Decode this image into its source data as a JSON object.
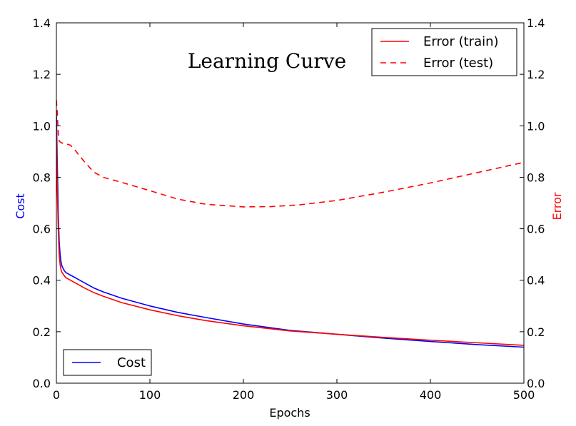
{
  "chart_data": {
    "type": "line",
    "title": "Learning Curve",
    "xlabel": "Epochs",
    "ylabel_left": "Cost",
    "ylabel_right": "Error",
    "xlim": [
      0,
      500
    ],
    "ylim_left": [
      0.0,
      1.4
    ],
    "ylim_right": [
      0.0,
      1.4
    ],
    "x_ticks": [
      "0",
      "100",
      "200",
      "300",
      "400",
      "500"
    ],
    "y_ticks_left": [
      "0.0",
      "0.2",
      "0.4",
      "0.6",
      "0.8",
      "1.0",
      "1.2",
      "1.4"
    ],
    "y_ticks_right": [
      "0.0",
      "0.2",
      "0.4",
      "0.6",
      "0.8",
      "1.0",
      "1.2",
      "1.4"
    ],
    "grid": false,
    "left_axis_color": "#0000ff",
    "right_axis_color": "#ff0000",
    "legend_right": {
      "placement": "top-right",
      "entries": [
        "Error (train)",
        "Error (test)"
      ]
    },
    "legend_left": {
      "placement": "bottom-left",
      "entries": [
        "Cost"
      ]
    },
    "series": [
      {
        "name": "Cost",
        "axis": "left",
        "color": "#0000ff",
        "style": "solid",
        "x": [
          0,
          1,
          2,
          3,
          4,
          5,
          6,
          8,
          10,
          15,
          20,
          30,
          40,
          50,
          70,
          100,
          130,
          160,
          200,
          250,
          300,
          350,
          400,
          450,
          500
        ],
        "y": [
          1.05,
          0.85,
          0.66,
          0.55,
          0.5,
          0.47,
          0.455,
          0.44,
          0.43,
          0.42,
          0.41,
          0.39,
          0.37,
          0.355,
          0.33,
          0.3,
          0.275,
          0.255,
          0.23,
          0.205,
          0.19,
          0.175,
          0.162,
          0.15,
          0.14
        ]
      },
      {
        "name": "Error (train)",
        "axis": "right",
        "color": "#ff0000",
        "style": "solid",
        "x": [
          0,
          1,
          2,
          3,
          4,
          5,
          6,
          8,
          10,
          15,
          20,
          30,
          40,
          50,
          70,
          100,
          130,
          160,
          200,
          250,
          300,
          350,
          400,
          450,
          500
        ],
        "y": [
          1.0,
          0.75,
          0.6,
          0.5,
          0.46,
          0.44,
          0.43,
          0.42,
          0.41,
          0.4,
          0.39,
          0.37,
          0.352,
          0.338,
          0.313,
          0.285,
          0.262,
          0.243,
          0.223,
          0.203,
          0.19,
          0.178,
          0.167,
          0.157,
          0.147
        ]
      },
      {
        "name": "Error (test)",
        "axis": "right",
        "color": "#ff0000",
        "style": "dashed",
        "x": [
          0,
          1,
          2,
          3,
          5,
          8,
          10,
          15,
          20,
          30,
          40,
          50,
          70,
          100,
          130,
          160,
          200,
          230,
          260,
          300,
          350,
          400,
          450,
          500
        ],
        "y": [
          1.1,
          1.05,
          0.97,
          0.94,
          0.935,
          0.93,
          0.93,
          0.925,
          0.905,
          0.86,
          0.82,
          0.8,
          0.78,
          0.748,
          0.715,
          0.695,
          0.685,
          0.686,
          0.693,
          0.71,
          0.742,
          0.778,
          0.818,
          0.858
        ]
      }
    ]
  }
}
